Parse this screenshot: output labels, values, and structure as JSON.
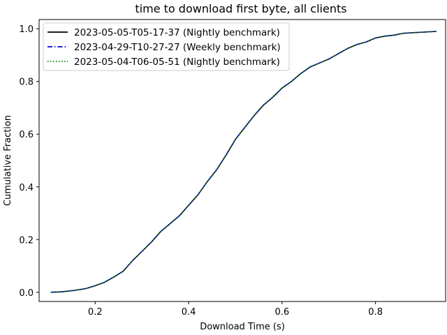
{
  "chart_data": {
    "type": "line",
    "title": "time to download first byte, all clients",
    "xlabel": "Download Time (s)",
    "ylabel": "Cumulative Fraction",
    "xlim": [
      0.08,
      0.95
    ],
    "ylim": [
      -0.035,
      1.035
    ],
    "xticks": [
      0.2,
      0.4,
      0.6,
      0.8
    ],
    "xtick_labels": [
      "0.2",
      "0.4",
      "0.6",
      "0.8"
    ],
    "yticks": [
      0.0,
      0.2,
      0.4,
      0.6,
      0.8,
      1.0
    ],
    "ytick_labels": [
      "0.0",
      "0.2",
      "0.4",
      "0.6",
      "0.8",
      "1.0"
    ],
    "grid": false,
    "legend_position": "top-left",
    "series": [
      {
        "name": "2023-05-05-T05-17-37 (Nightly benchmark)",
        "color": "#000000",
        "style": "solid",
        "x": [
          0.105,
          0.13,
          0.155,
          0.18,
          0.2,
          0.22,
          0.24,
          0.26,
          0.28,
          0.3,
          0.32,
          0.34,
          0.36,
          0.38,
          0.4,
          0.42,
          0.44,
          0.46,
          0.48,
          0.5,
          0.52,
          0.54,
          0.56,
          0.58,
          0.6,
          0.62,
          0.64,
          0.66,
          0.68,
          0.7,
          0.72,
          0.74,
          0.76,
          0.78,
          0.8,
          0.82,
          0.84,
          0.86,
          0.88,
          0.9,
          0.93
        ],
        "y": [
          0.0,
          0.002,
          0.007,
          0.014,
          0.025,
          0.038,
          0.058,
          0.08,
          0.12,
          0.155,
          0.19,
          0.23,
          0.26,
          0.29,
          0.33,
          0.37,
          0.42,
          0.465,
          0.52,
          0.58,
          0.625,
          0.67,
          0.71,
          0.74,
          0.775,
          0.8,
          0.83,
          0.855,
          0.87,
          0.885,
          0.905,
          0.925,
          0.94,
          0.95,
          0.965,
          0.972,
          0.976,
          0.983,
          0.985,
          0.987,
          0.99
        ]
      },
      {
        "name": "2023-04-29-T10-27-27 (Weekly benchmark)",
        "color": "#0000cc",
        "style": "dashdot",
        "x": [
          0.105,
          0.13,
          0.155,
          0.18,
          0.2,
          0.22,
          0.24,
          0.26,
          0.28,
          0.3,
          0.32,
          0.34,
          0.36,
          0.38,
          0.4,
          0.42,
          0.44,
          0.46,
          0.48,
          0.5,
          0.52,
          0.54,
          0.56,
          0.58,
          0.6,
          0.62,
          0.64,
          0.66,
          0.68,
          0.7,
          0.72,
          0.74,
          0.76,
          0.78,
          0.8,
          0.82,
          0.84,
          0.86,
          0.88,
          0.9,
          0.93
        ],
        "y": [
          0.0,
          0.002,
          0.007,
          0.014,
          0.025,
          0.038,
          0.058,
          0.08,
          0.12,
          0.155,
          0.19,
          0.23,
          0.26,
          0.29,
          0.33,
          0.37,
          0.42,
          0.465,
          0.52,
          0.58,
          0.625,
          0.67,
          0.71,
          0.74,
          0.775,
          0.8,
          0.83,
          0.855,
          0.87,
          0.885,
          0.905,
          0.925,
          0.94,
          0.95,
          0.965,
          0.972,
          0.976,
          0.983,
          0.985,
          0.987,
          0.99
        ]
      },
      {
        "name": "2023-05-04-T06-05-51 (Nightly benchmark)",
        "color": "#008000",
        "style": "dotted",
        "x": [
          0.105,
          0.13,
          0.155,
          0.18,
          0.2,
          0.22,
          0.24,
          0.26,
          0.28,
          0.3,
          0.32,
          0.34,
          0.36,
          0.38,
          0.4,
          0.42,
          0.44,
          0.46,
          0.48,
          0.5,
          0.52,
          0.54,
          0.56,
          0.58,
          0.6,
          0.62,
          0.64,
          0.66,
          0.68,
          0.7,
          0.72,
          0.74,
          0.76,
          0.78,
          0.8,
          0.82,
          0.84,
          0.86,
          0.88,
          0.9,
          0.93
        ],
        "y": [
          0.0,
          0.002,
          0.007,
          0.014,
          0.025,
          0.038,
          0.058,
          0.08,
          0.12,
          0.155,
          0.19,
          0.23,
          0.26,
          0.29,
          0.33,
          0.37,
          0.42,
          0.465,
          0.52,
          0.58,
          0.625,
          0.67,
          0.71,
          0.74,
          0.775,
          0.8,
          0.83,
          0.855,
          0.87,
          0.885,
          0.905,
          0.925,
          0.94,
          0.95,
          0.965,
          0.972,
          0.976,
          0.983,
          0.985,
          0.987,
          0.99
        ]
      }
    ]
  }
}
